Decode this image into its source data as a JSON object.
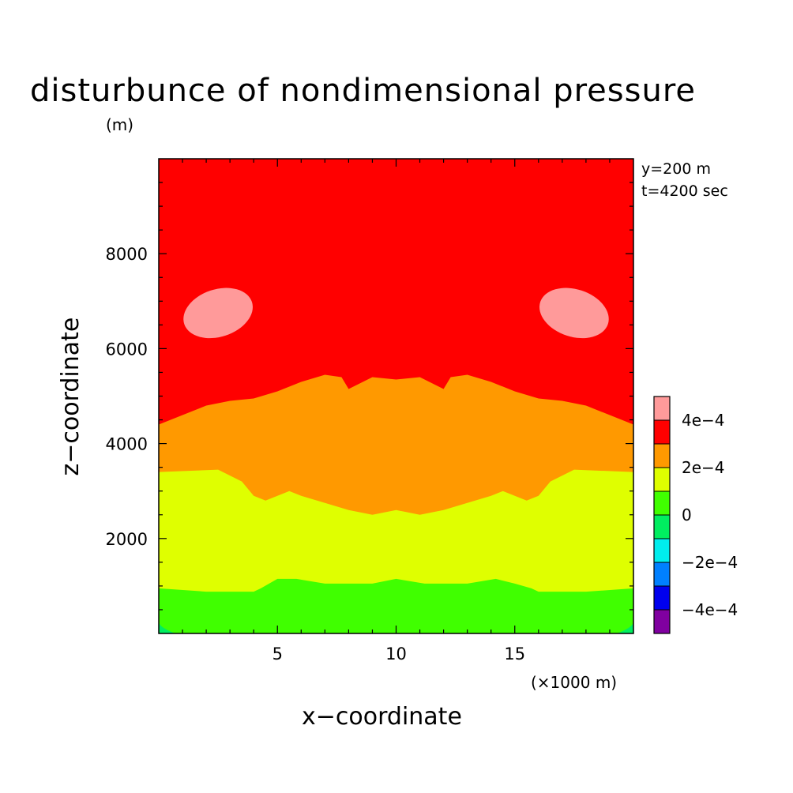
{
  "chart_data": {
    "type": "heatmap",
    "subtype": "filled-contour",
    "title": "disturbunce of nondimensional pressure",
    "xlabel": "x−coordinate",
    "ylabel": "z−coordinate",
    "x_unit": "(×1000 m)",
    "y_unit": "(m)",
    "annotations": [
      "y=200 m",
      "t=4200 sec"
    ],
    "xlim": [
      0,
      20
    ],
    "ylim": [
      0,
      10000
    ],
    "x_ticks": [
      5,
      10,
      15
    ],
    "x_tick_labels": [
      "5",
      "10",
      "15"
    ],
    "y_ticks": [
      2000,
      4000,
      6000,
      8000
    ],
    "y_tick_labels": [
      "2000",
      "4000",
      "6000",
      "8000"
    ],
    "colorbar": {
      "levels": [
        -0.0005,
        -0.0004,
        -0.0003,
        -0.0002,
        -0.0001,
        0,
        0.0001,
        0.0002,
        0.0003,
        0.0004,
        0.0005
      ],
      "colors": [
        "#8000a0",
        "#0000ee",
        "#0080ff",
        "#00eeee",
        "#00ee60",
        "#40ff00",
        "#dfff00",
        "#ff9900",
        "#ff0000",
        "#ff9a9a"
      ],
      "tick_labels": [
        "−4e−4",
        "−2e−4",
        "0",
        "2e−4",
        "4e−4"
      ]
    },
    "contours": [
      {
        "level": 0.0001,
        "color": "#dfff00",
        "x": [
          0,
          2,
          4,
          4.3,
          5,
          5.8,
          7,
          9,
          10,
          11.2,
          13,
          14.2,
          15,
          15.7,
          16,
          18,
          20
        ],
        "z": [
          950,
          880,
          880,
          950,
          1150,
          1150,
          1050,
          1050,
          1150,
          1050,
          1050,
          1150,
          1050,
          950,
          880,
          880,
          950
        ]
      },
      {
        "level": 0.0002,
        "color": "#ff9900",
        "x": [
          0,
          2.5,
          3.5,
          4,
          4.5,
          5.5,
          6,
          8,
          9,
          10,
          11,
          12,
          14,
          14.5,
          15.5,
          16,
          16.5,
          17.5,
          20
        ],
        "z": [
          3400,
          3450,
          3200,
          2900,
          2800,
          3000,
          2900,
          2600,
          2500,
          2600,
          2500,
          2600,
          2900,
          3000,
          2800,
          2900,
          3200,
          3450,
          3400
        ]
      },
      {
        "level": 0.0003,
        "color": "#ff0000",
        "x": [
          0,
          2,
          3,
          4,
          5,
          6,
          7,
          7.7,
          8,
          9,
          10,
          11,
          12,
          12.3,
          13,
          14,
          15,
          16,
          17,
          18,
          20
        ],
        "z": [
          4400,
          4800,
          4900,
          4950,
          5100,
          5300,
          5450,
          5400,
          5150,
          5400,
          5350,
          5400,
          5150,
          5400,
          5450,
          5300,
          5100,
          4950,
          4900,
          4800,
          4400
        ]
      }
    ],
    "max_regions": [
      {
        "level": 0.0004,
        "color": "#ff9a9a",
        "x_range": [
          1,
          4
        ],
        "z_range": [
          6250,
          7250
        ]
      },
      {
        "level": 0.0004,
        "color": "#ff9a9a",
        "x_range": [
          16,
          19
        ],
        "z_range": [
          6250,
          7250
        ]
      }
    ],
    "min_corners": [
      {
        "level": 0,
        "color": "#00ee60",
        "x_range": [
          0,
          0.7
        ],
        "z_range": [
          0,
          250
        ]
      },
      {
        "level": 0,
        "color": "#00ee60",
        "x_range": [
          19.3,
          20
        ],
        "z_range": [
          0,
          250
        ]
      }
    ]
  }
}
